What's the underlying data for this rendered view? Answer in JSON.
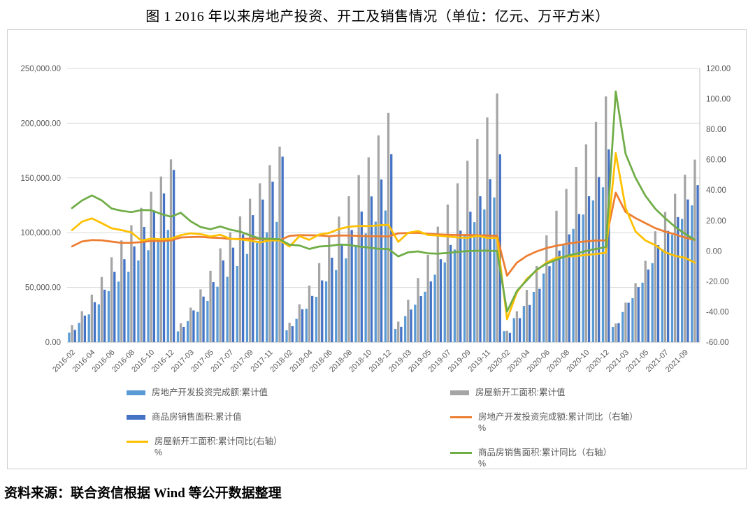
{
  "page": {
    "title": "图 1  2016 年以来房地产投资、开工及销售情况（单位：亿元、万平方米）",
    "source_note": "资料来源：联合资信根据 Wind 等公开数据整理"
  },
  "chart_data": {
    "type": "bar",
    "subtype": "combo bar+line, dual axis",
    "title": "图 1  2016 年以来房地产投资、开工及销售情况（单位：亿元、万平方米）",
    "xlabel": "",
    "ylabel_left": "亿元、万平方米",
    "ylabel_right": "%",
    "grid": true,
    "legend_position": "bottom",
    "y_left": {
      "min": 0,
      "max": 250000,
      "step": 50000,
      "tick_labels": [
        "0.00",
        "50,000.00",
        "100,000.00",
        "150,000.00",
        "200,000.00",
        "250,000.00"
      ]
    },
    "y_right": {
      "min": -60,
      "max": 120,
      "step": 20,
      "tick_labels": [
        "-60.00",
        "-40.00",
        "-20.00",
        "0.00",
        "20.00",
        "40.00",
        "60.00",
        "80.00",
        "100.00",
        "120.00"
      ]
    },
    "categories": [
      "2016-02",
      "2016-03",
      "2016-04",
      "2016-05",
      "2016-06",
      "2016-07",
      "2016-08",
      "2016-09",
      "2016-10",
      "2016-11",
      "2016-12",
      "2017-02",
      "2017-03",
      "2017-04",
      "2017-05",
      "2017-06",
      "2017-07",
      "2017-08",
      "2017-09",
      "2017-10",
      "2017-11",
      "2017-12",
      "2018-02",
      "2018-03",
      "2018-04",
      "2018-05",
      "2018-06",
      "2018-07",
      "2018-08",
      "2018-09",
      "2018-10",
      "2018-11",
      "2018-12",
      "2019-02",
      "2019-03",
      "2019-04",
      "2019-05",
      "2019-06",
      "2019-07",
      "2019-08",
      "2019-09",
      "2019-10",
      "2019-11",
      "2019-12",
      "2020-02",
      "2020-03",
      "2020-04",
      "2020-05",
      "2020-06",
      "2020-07",
      "2020-08",
      "2020-09",
      "2020-10",
      "2020-11",
      "2020-12",
      "2021-02",
      "2021-03",
      "2021-04",
      "2021-05",
      "2021-06",
      "2021-07",
      "2021-08",
      "2021-09",
      "2021-10"
    ],
    "x_tick_labels": [
      "2016-02",
      "2016-04",
      "2016-06",
      "2016-08",
      "2016-10",
      "2016-12",
      "2017-03",
      "2017-05",
      "2017-07",
      "2017-09",
      "2017-11",
      "2018-02",
      "2018-04",
      "2018-06",
      "2018-08",
      "2018-10",
      "2018-12",
      "2019-03",
      "2019-05",
      "2019-07",
      "2019-09",
      "2019-11",
      "2020-02",
      "2020-04",
      "2020-06",
      "2020-08",
      "2020-10",
      "2020-12",
      "2021-03",
      "2021-05",
      "2021-07",
      "2021-09"
    ],
    "x_tick_every": 2,
    "series": [
      {
        "id": "investment-cum",
        "name": "房地产开发投资完成额:累计值",
        "type": "bar",
        "axis": "left",
        "color": "#5B9BD5",
        "values": [
          8712,
          17677,
          25376,
          34564,
          46631,
          55361,
          64387,
          74598,
          83975,
          93387,
          102581,
          9854,
          19292,
          27732,
          37595,
          50610,
          59761,
          69494,
          80595,
          90544,
          100387,
          109799,
          10831,
          21291,
          30592,
          41420,
          55531,
          65886,
          76519,
          88665,
          99325,
          110083,
          120264,
          12090,
          23803,
          34217,
          46075,
          61609,
          72843,
          84589,
          98008,
          109603,
          121265,
          132194,
          10115,
          21963,
          33103,
          45920,
          62780,
          75325,
          88454,
          103484,
          116556,
          129492,
          141443,
          13986,
          27576,
          40240,
          54318,
          72179,
          84895,
          98060,
          112568,
          124934
        ]
      },
      {
        "id": "new-starts-cum",
        "name": "房屋新开工面积:累计值",
        "type": "bar",
        "axis": "left",
        "color": "#A5A5A5",
        "values": [
          15620,
          28281,
          43445,
          59522,
          77537,
          92944,
          106834,
          122655,
          137375,
          151303,
          166928,
          17238,
          31560,
          48240,
          65179,
          85720,
          100371,
          114996,
          131033,
          145127,
          161679,
          178654,
          17746,
          34615,
          51779,
          72190,
          95817,
          114781,
          133293,
          152583,
          168754,
          188895,
          209342,
          18814,
          38728,
          58552,
          79784,
          105509,
          125716,
          145133,
          165707,
          185634,
          205194,
          227154,
          10370,
          28203,
          47768,
          69533,
          97536,
          120032,
          139917,
          160090,
          180718,
          201115,
          224433,
          17037,
          36163,
          53905,
          74349,
          101288,
          118948,
          135502,
          152944,
          166736
        ]
      },
      {
        "id": "sales-cum",
        "name": "商品房销售面积:累计值",
        "type": "bar",
        "axis": "left",
        "color": "#4472C4",
        "values": [
          11235,
          24299,
          36612,
          47954,
          64302,
          75760,
          87451,
          105185,
          120338,
          135829,
          157349,
          14054,
          29035,
          41655,
          54820,
          74662,
          86351,
          98539,
          116006,
          130254,
          146568,
          169408,
          14633,
          30088,
          42192,
          56409,
          77143,
          89990,
          102474,
          119313,
          133117,
          148604,
          171654,
          14102,
          29829,
          42085,
          55518,
          75786,
          88783,
          101849,
          119179,
          133251,
          148905,
          171558,
          8475,
          21978,
          33973,
          48703,
          69404,
          83631,
          98486,
          117073,
          133294,
          150834,
          176086,
          17363,
          36007,
          50305,
          66383,
          88635,
          101648,
          114193,
          130332,
          143383
        ]
      },
      {
        "id": "investment-yoy",
        "name": "房地产开发投资完成额:累计同比（右轴）%",
        "type": "line",
        "axis": "right",
        "color": "#ED7D31",
        "values": [
          3.0,
          6.2,
          7.2,
          7.0,
          6.1,
          5.3,
          5.4,
          5.8,
          6.6,
          6.5,
          6.9,
          8.9,
          9.1,
          9.3,
          8.8,
          8.5,
          7.9,
          7.8,
          8.1,
          7.8,
          7.5,
          7.0,
          9.9,
          10.4,
          10.3,
          10.2,
          9.7,
          10.2,
          10.1,
          9.9,
          9.7,
          9.7,
          9.5,
          11.6,
          11.8,
          11.9,
          11.2,
          10.9,
          10.6,
          10.5,
          10.5,
          10.3,
          10.2,
          9.9,
          -16.3,
          -7.7,
          -3.3,
          -0.3,
          1.9,
          3.4,
          4.6,
          5.6,
          6.3,
          6.8,
          7.0,
          38.3,
          25.6,
          21.6,
          18.3,
          15.0,
          12.7,
          10.9,
          8.8,
          7.2
        ]
      },
      {
        "id": "new-starts-yoy",
        "name": "房屋新开工面积:累计同比(右轴）%",
        "type": "line",
        "axis": "right",
        "color": "#FFC000",
        "values": [
          13.7,
          19.2,
          21.4,
          18.3,
          14.9,
          13.7,
          12.2,
          6.8,
          8.1,
          7.6,
          8.1,
          10.4,
          11.6,
          11.1,
          9.5,
          10.6,
          8.0,
          7.6,
          6.8,
          5.6,
          6.9,
          7.0,
          2.9,
          9.7,
          7.3,
          10.8,
          11.8,
          14.4,
          15.9,
          16.4,
          16.3,
          16.8,
          17.2,
          6.0,
          11.9,
          13.1,
          10.5,
          10.1,
          9.5,
          8.9,
          8.6,
          10.0,
          8.6,
          8.5,
          -44.9,
          -27.2,
          -18.4,
          -12.8,
          -7.6,
          -4.5,
          -3.6,
          -3.4,
          -2.6,
          -2.0,
          -1.2,
          64.3,
          28.2,
          12.8,
          6.9,
          3.8,
          -0.9,
          -3.2,
          -4.5,
          -7.7
        ]
      },
      {
        "id": "sales-yoy",
        "name": "商品房销售面积:累计同比（右轴）%",
        "type": "line",
        "axis": "right",
        "color": "#70AD47",
        "values": [
          28.2,
          33.1,
          36.5,
          33.2,
          27.9,
          26.4,
          25.5,
          26.9,
          26.8,
          24.3,
          22.5,
          25.1,
          19.5,
          15.7,
          14.3,
          16.1,
          14.0,
          12.7,
          10.3,
          8.2,
          7.9,
          7.7,
          4.1,
          3.6,
          1.3,
          2.9,
          3.3,
          4.2,
          4.0,
          2.9,
          2.2,
          1.4,
          1.3,
          -3.6,
          -0.9,
          -0.3,
          -1.6,
          -1.8,
          -1.3,
          -0.6,
          -0.1,
          0.1,
          0.2,
          -0.1,
          -39.9,
          -26.3,
          -19.3,
          -12.3,
          -8.4,
          -5.8,
          -3.3,
          -1.8,
          0.0,
          1.3,
          2.6,
          104.9,
          63.8,
          48.1,
          36.3,
          27.7,
          21.5,
          15.9,
          11.3,
          7.3
        ]
      }
    ],
    "legend": {
      "left": [
        {
          "swatch": "bar",
          "color": "#5B9BD5",
          "label": "房地产开发投资完成额:累计值",
          "sub": ""
        },
        {
          "swatch": "bar",
          "color": "#4472C4",
          "label": "商品房销售面积:累计值",
          "sub": ""
        },
        {
          "swatch": "line",
          "color": "#FFC000",
          "label": "房屋新开工面积:累计同比(右轴）",
          "sub": "%"
        }
      ],
      "right": [
        {
          "swatch": "bar",
          "color": "#A5A5A5",
          "label": "房屋新开工面积:累计值",
          "sub": ""
        },
        {
          "swatch": "line",
          "color": "#ED7D31",
          "label": "房地产开发投资完成额:累计同比（右轴）",
          "sub": "%"
        },
        {
          "swatch": "line",
          "color": "#70AD47",
          "label": "商品房销售面积:累计同比（右轴）",
          "sub": "%"
        }
      ]
    },
    "colors": {
      "grid": "#D9D9D9",
      "axis_line": "#BFBFBF",
      "tick_text": "#595959"
    }
  }
}
